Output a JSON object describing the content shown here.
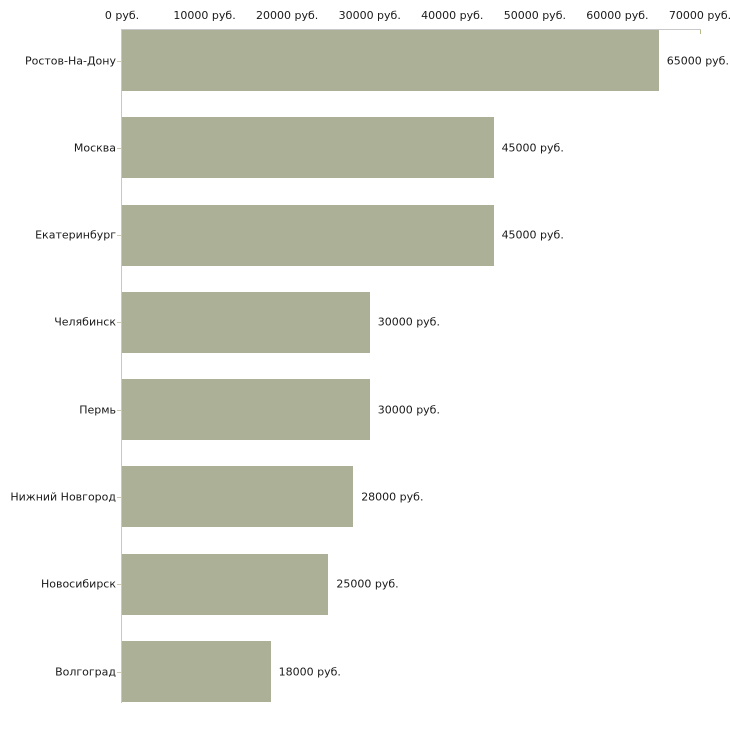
{
  "chart_data": {
    "type": "bar",
    "orientation": "horizontal",
    "title": "",
    "xlabel": "",
    "ylabel": "",
    "categories": [
      "Ростов-На-Дону",
      "Москва",
      "Екатеринбург",
      "Челябинск",
      "Пермь",
      "Нижний Новгород",
      "Новосибирск",
      "Волгоград"
    ],
    "values": [
      65000,
      45000,
      45000,
      30000,
      30000,
      28000,
      25000,
      18000
    ],
    "value_labels": [
      "65000 руб.",
      "45000 руб.",
      "45000 руб.",
      "30000 руб.",
      "30000 руб.",
      "28000 руб.",
      "25000 руб.",
      "18000 руб."
    ],
    "x_ticks": [
      0,
      10000,
      20000,
      30000,
      40000,
      50000,
      60000,
      70000
    ],
    "x_tick_labels": [
      "0 руб.",
      "10000 руб.",
      "20000 руб.",
      "30000 руб.",
      "40000 руб.",
      "50000 руб.",
      "60000 руб.",
      "70000 руб."
    ],
    "xlim": [
      0,
      70000
    ],
    "grid": false,
    "legend": null,
    "axis_position": "top-left",
    "colors": {
      "bar": "#abb096",
      "axis_line": "#c8c8c8",
      "x_tick": "#b5ba8a",
      "y_tick": "#cdc8b0",
      "text": "#1a1a1a",
      "background": "#ffffff"
    }
  }
}
